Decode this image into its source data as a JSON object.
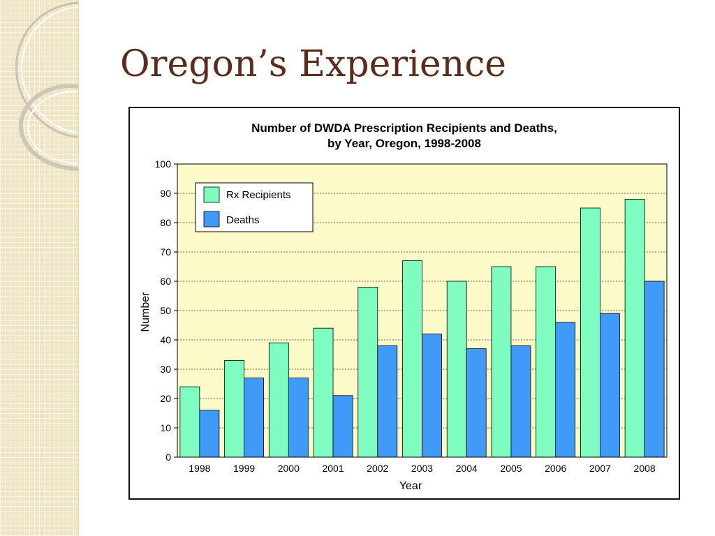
{
  "slide": {
    "title": "Oregon’s Experience"
  },
  "chart_data": {
    "type": "bar",
    "title": "Number of DWDA Prescription Recipients and Deaths,",
    "subtitle": "by Year, Oregon, 1998-2008",
    "xlabel": "Year",
    "ylabel": "Number",
    "ylim": [
      0,
      100
    ],
    "yticks": [
      0,
      10,
      20,
      30,
      40,
      50,
      60,
      70,
      80,
      90,
      100
    ],
    "grid": true,
    "legend_position": "top-left",
    "categories": [
      "1998",
      "1999",
      "2000",
      "2001",
      "2002",
      "2003",
      "2004",
      "2005",
      "2006",
      "2007",
      "2008"
    ],
    "series": [
      {
        "name": "Rx Recipients",
        "color": "#7ffcc0",
        "values": [
          24,
          33,
          39,
          44,
          58,
          67,
          60,
          65,
          65,
          85,
          88
        ]
      },
      {
        "name": "Deaths",
        "color": "#3f9af8",
        "values": [
          16,
          27,
          27,
          21,
          38,
          42,
          37,
          38,
          46,
          49,
          60
        ]
      }
    ],
    "plot_background": "#fbfac8"
  }
}
